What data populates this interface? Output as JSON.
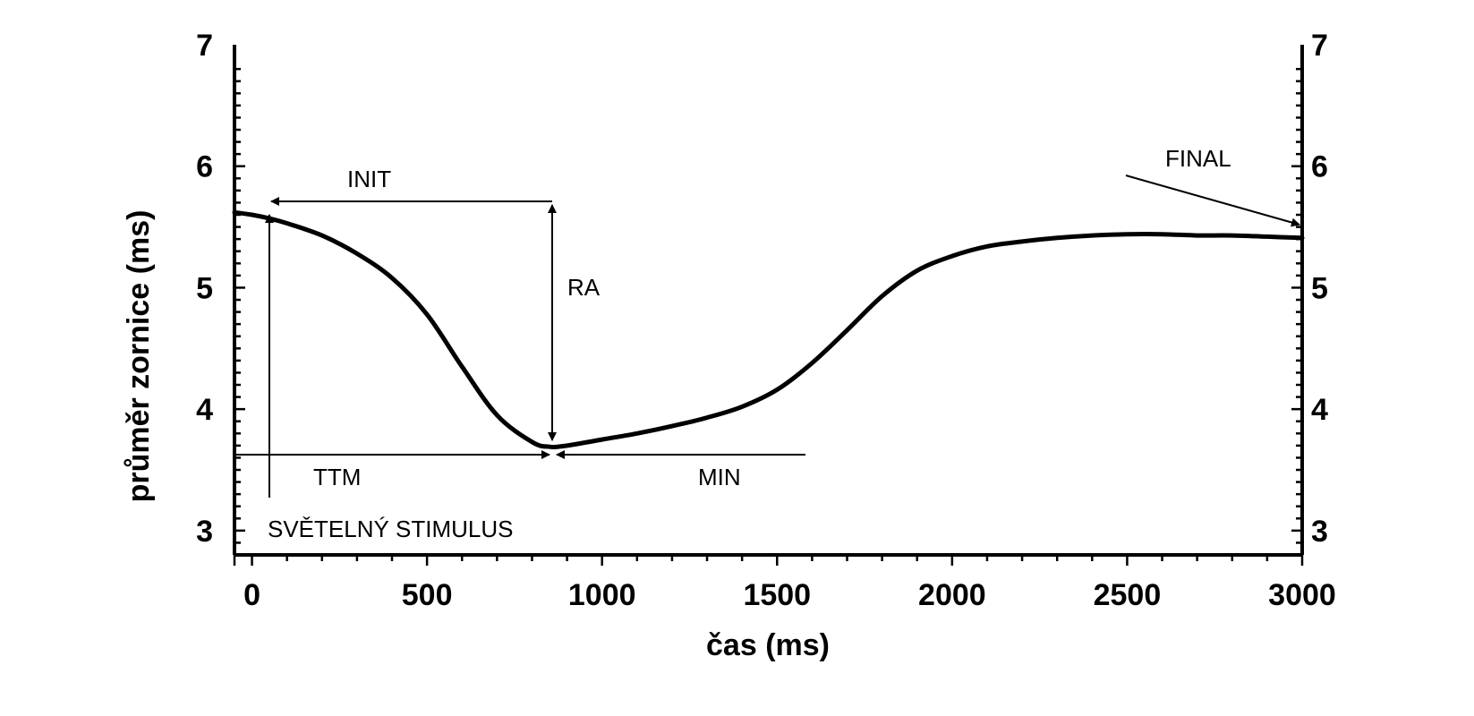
{
  "chart_data": {
    "type": "line",
    "title": "",
    "xlabel": "čas (ms)",
    "ylabel": "průměr zornice (ms)",
    "xlim": [
      -50,
      3000
    ],
    "ylim": [
      2.8,
      7
    ],
    "x_ticks": [
      0,
      500,
      1000,
      1500,
      2000,
      2500,
      3000
    ],
    "y_ticks": [
      3,
      4,
      5,
      6,
      7
    ],
    "right_axis_ticks": [
      3,
      4,
      5,
      6,
      7
    ],
    "grid": false,
    "legend": "none",
    "series": [
      {
        "x": [
          -50,
          0,
          50,
          100,
          200,
          300,
          400,
          500,
          600,
          700,
          800,
          850,
          900,
          1000,
          1100,
          1200,
          1300,
          1400,
          1500,
          1600,
          1700,
          1800,
          1900,
          2000,
          2100,
          2200,
          2300,
          2400,
          2500,
          2600,
          2700,
          2800,
          2900,
          3000
        ],
        "y": [
          5.62,
          5.6,
          5.57,
          5.53,
          5.43,
          5.28,
          5.08,
          4.78,
          4.35,
          3.95,
          3.73,
          3.69,
          3.7,
          3.75,
          3.8,
          3.86,
          3.93,
          4.02,
          4.16,
          4.38,
          4.65,
          4.93,
          5.14,
          5.26,
          5.34,
          5.38,
          5.41,
          5.43,
          5.44,
          5.44,
          5.43,
          5.43,
          5.42,
          5.41
        ]
      }
    ],
    "annotations": [
      {
        "label": "INIT",
        "arrow": "horizontal, from x=900 at y=5.6 pointing left to curve start"
      },
      {
        "label": "RA",
        "arrow": "vertical double-headed at x=900 between y=5.6 and y=3.7"
      },
      {
        "label": "TTM",
        "arrow": "horizontal at y=3.6 pointing right to x=880"
      },
      {
        "label": "MIN",
        "arrow": "horizontal at y=3.6 pointing left to x=920"
      },
      {
        "label": "SVĚTELNÝ STIMULUS",
        "arrow": "vertical at x=50 pointing up to curve"
      },
      {
        "label": "FINAL",
        "arrow": "diagonal pointing to curve end at x=3000"
      }
    ]
  }
}
